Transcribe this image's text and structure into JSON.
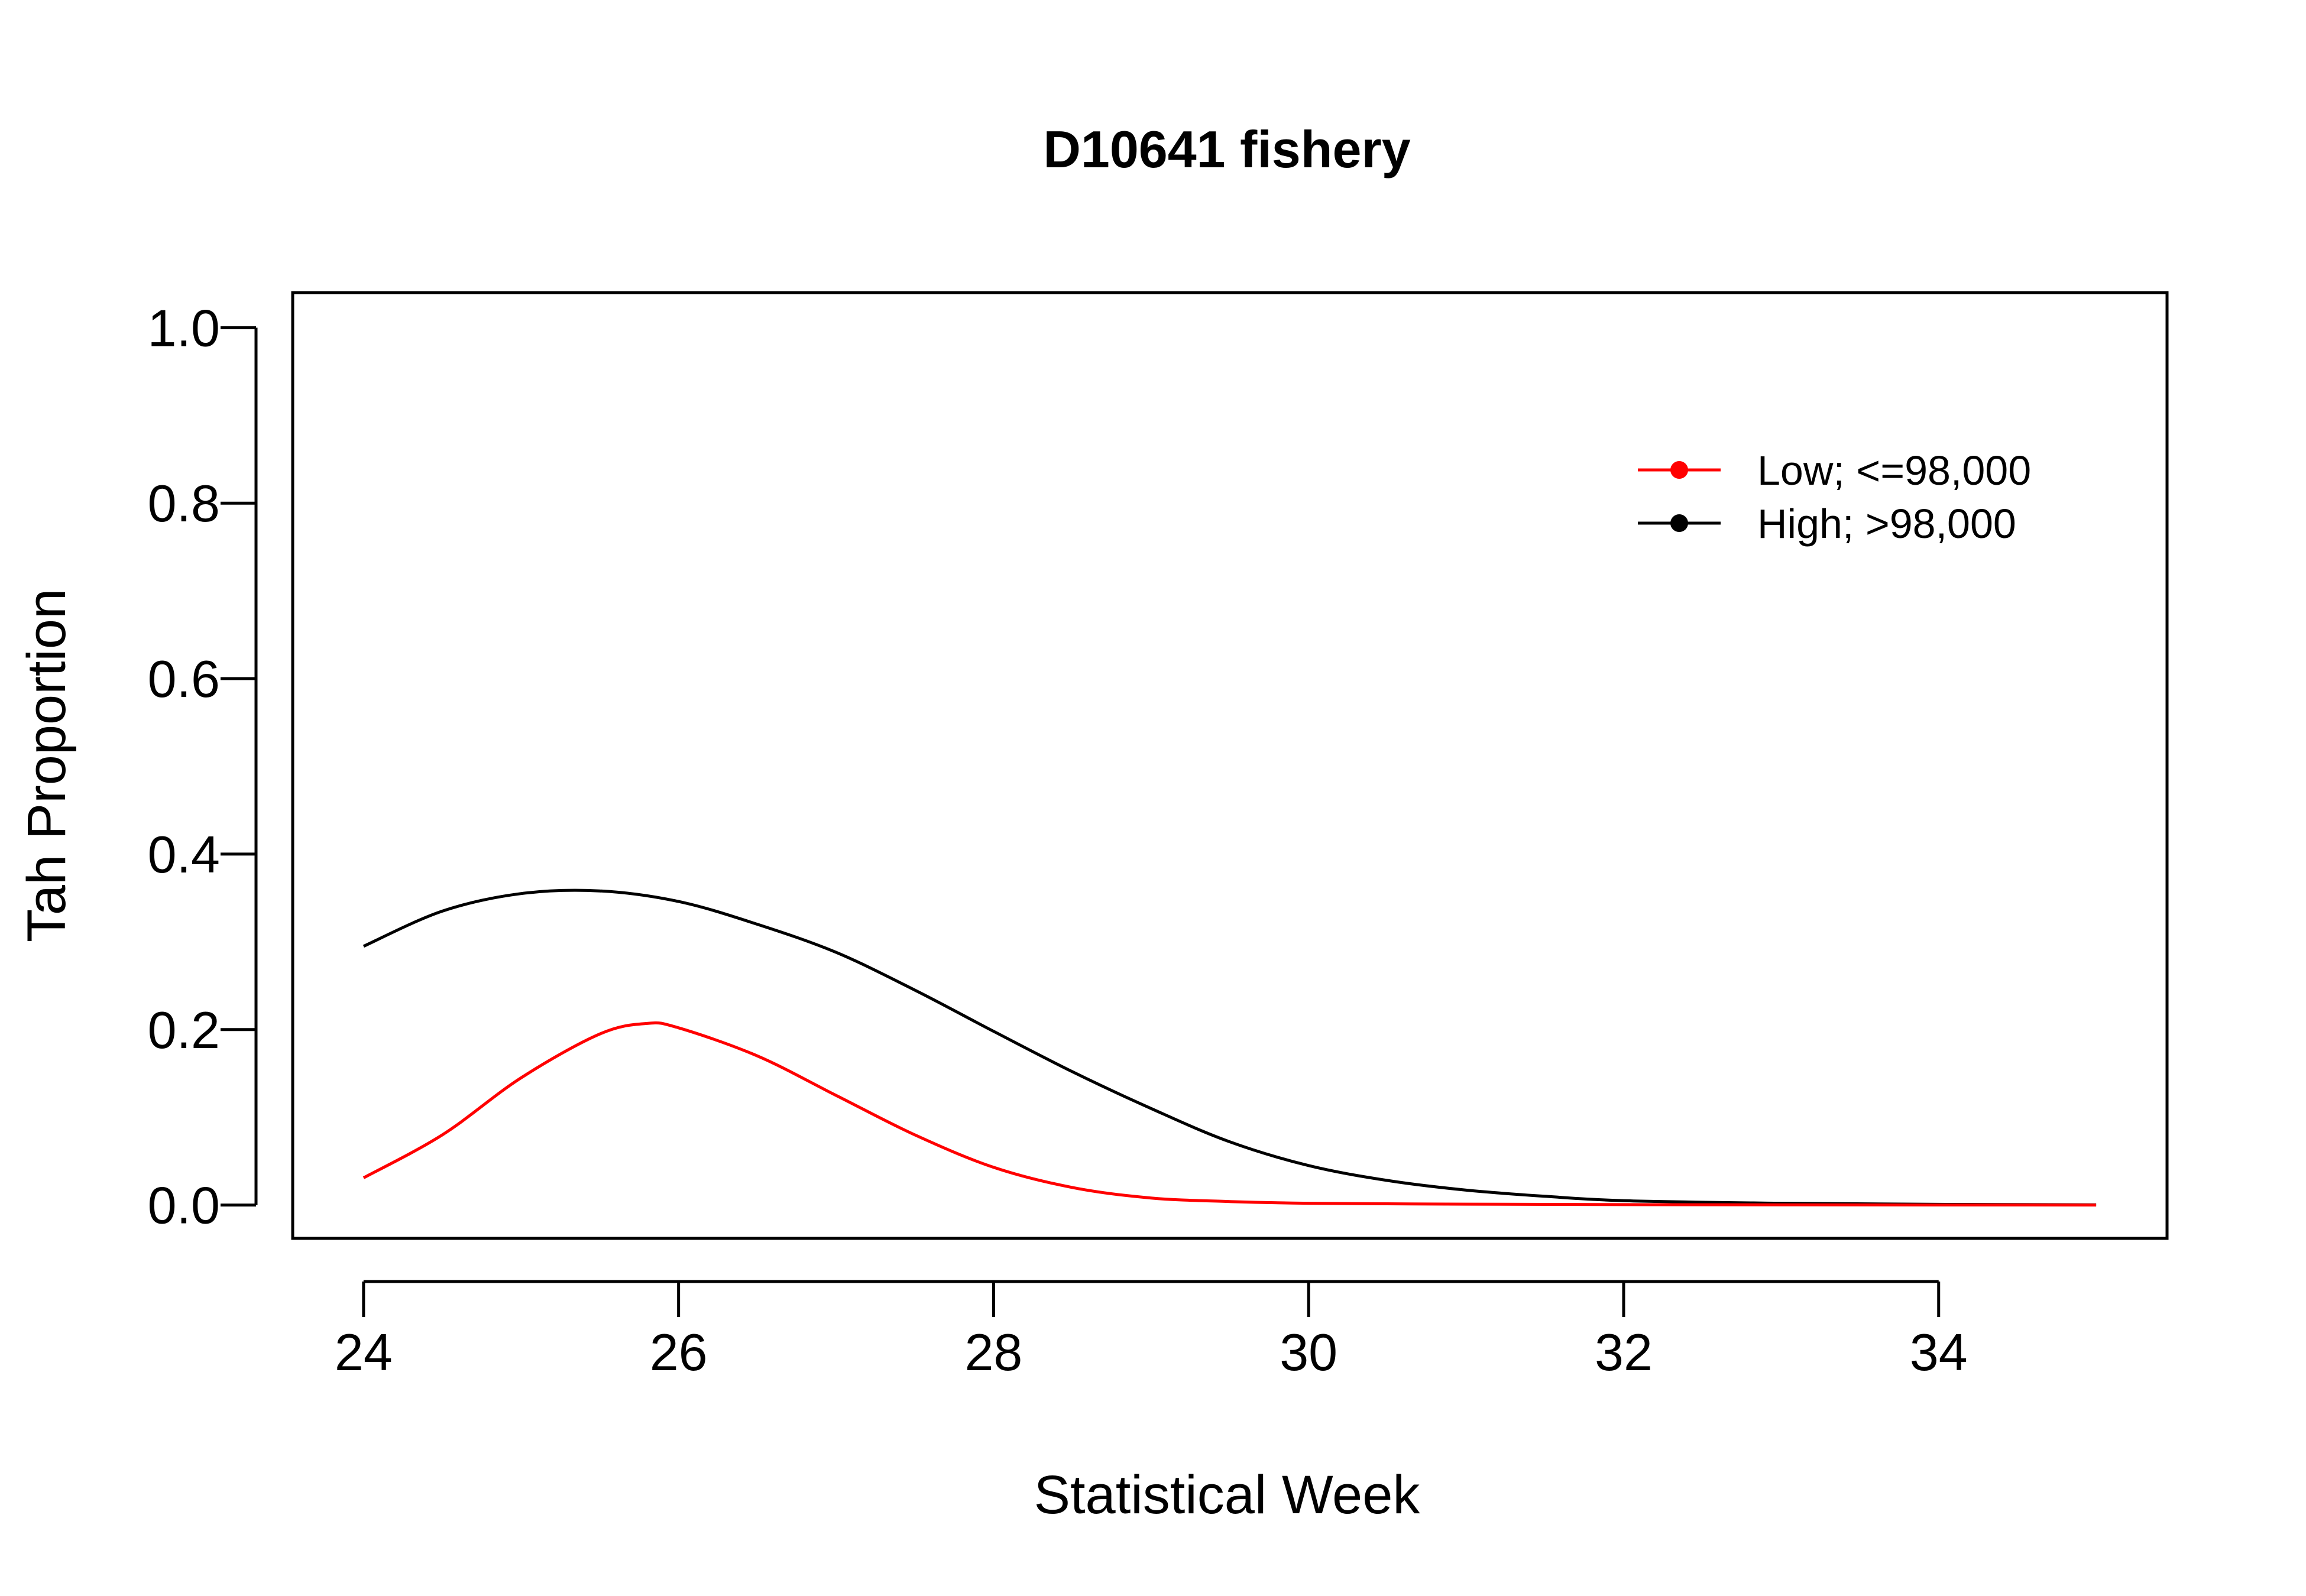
{
  "chart_data": {
    "type": "line",
    "title": "D10641 fishery",
    "xlabel": "Statistical Week",
    "ylabel": "Tah Proportion",
    "xlim": [
      23.55,
      35.45
    ],
    "ylim": [
      -0.038,
      1.04
    ],
    "x_ticks": [
      24,
      26,
      28,
      30,
      32,
      34
    ],
    "x_tick_labels": [
      "24",
      "26",
      "28",
      "30",
      "32",
      "34"
    ],
    "y_ticks": [
      0.0,
      0.2,
      0.4,
      0.6,
      0.8,
      1.0
    ],
    "y_tick_labels": [
      "0.0",
      "0.2",
      "0.4",
      "0.6",
      "0.8",
      "1.0"
    ],
    "grid": false,
    "legend_position": "top-right",
    "series": [
      {
        "name": "Low; <=98,000",
        "color": "#ff0000",
        "x": [
          24,
          24.5,
          25,
          25.5,
          25.8,
          26,
          26.5,
          27,
          27.5,
          28,
          28.5,
          29,
          29.5,
          30,
          31,
          32,
          33,
          34,
          35
        ],
        "y": [
          0.031,
          0.08,
          0.145,
          0.195,
          0.207,
          0.202,
          0.17,
          0.125,
          0.08,
          0.043,
          0.02,
          0.008,
          0.004,
          0.002,
          0.001,
          0.0005,
          0.0003,
          0.0001,
          0.0
        ]
      },
      {
        "name": "High; >98,000",
        "color": "#000000",
        "x": [
          24,
          24.5,
          25,
          25.5,
          26,
          26.5,
          27,
          27.5,
          28,
          28.5,
          29,
          29.5,
          30,
          30.5,
          31,
          31.5,
          32,
          33,
          34,
          35
        ],
        "y": [
          0.295,
          0.335,
          0.355,
          0.358,
          0.346,
          0.32,
          0.288,
          0.245,
          0.198,
          0.152,
          0.11,
          0.072,
          0.045,
          0.028,
          0.017,
          0.01,
          0.005,
          0.002,
          0.0008,
          0.0003
        ]
      }
    ]
  }
}
